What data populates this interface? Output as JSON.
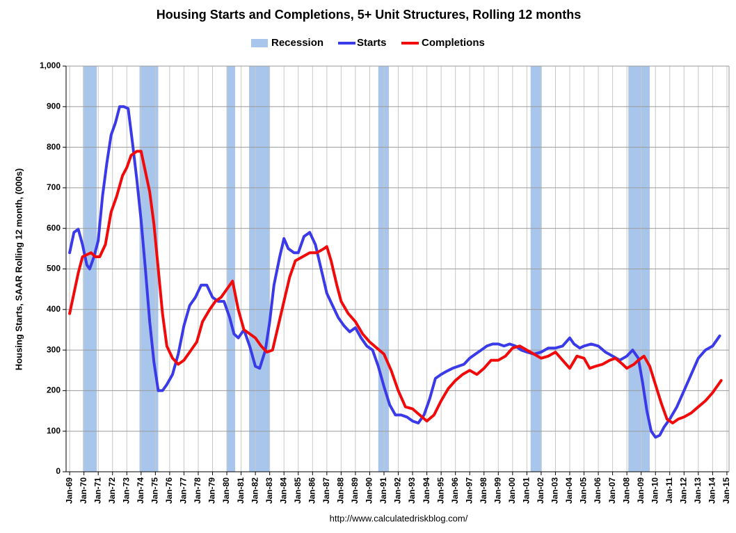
{
  "chart_data": {
    "type": "line",
    "title": "Housing Starts and Completions, 5+ Unit Structures, Rolling 12 months",
    "y_label": "Housing Starts, SAAR Rolling 12 month, (000s)",
    "source": "http://www.calculatedriskblog.com/",
    "xlim": [
      1968.75,
      2015.15
    ],
    "ylim": [
      0,
      1000
    ],
    "yticks": [
      0,
      100,
      200,
      300,
      400,
      500,
      600,
      700,
      800,
      900,
      {
        "value": 1000,
        "label": "1,000"
      }
    ],
    "xticks": [
      {
        "value": 1969,
        "label": "Jan-69"
      },
      {
        "value": 1970,
        "label": "Jan-70"
      },
      {
        "value": 1971,
        "label": "Jan-71"
      },
      {
        "value": 1972,
        "label": "Jan-72"
      },
      {
        "value": 1973,
        "label": "Jan-73"
      },
      {
        "value": 1974,
        "label": "Jan-74"
      },
      {
        "value": 1975,
        "label": "Jan-75"
      },
      {
        "value": 1976,
        "label": "Jan-76"
      },
      {
        "value": 1977,
        "label": "Jan-77"
      },
      {
        "value": 1978,
        "label": "Jan-78"
      },
      {
        "value": 1979,
        "label": "Jan-79"
      },
      {
        "value": 1980,
        "label": "Jan-80"
      },
      {
        "value": 1981,
        "label": "Jan-81"
      },
      {
        "value": 1982,
        "label": "Jan-82"
      },
      {
        "value": 1983,
        "label": "Jan-83"
      },
      {
        "value": 1984,
        "label": "Jan-84"
      },
      {
        "value": 1985,
        "label": "Jan-85"
      },
      {
        "value": 1986,
        "label": "Jan-86"
      },
      {
        "value": 1987,
        "label": "Jan-87"
      },
      {
        "value": 1988,
        "label": "Jan-88"
      },
      {
        "value": 1989,
        "label": "Jan-89"
      },
      {
        "value": 1990,
        "label": "Jan-90"
      },
      {
        "value": 1991,
        "label": "Jan-91"
      },
      {
        "value": 1992,
        "label": "Jan-92"
      },
      {
        "value": 1993,
        "label": "Jan-93"
      },
      {
        "value": 1994,
        "label": "Jan-94"
      },
      {
        "value": 1995,
        "label": "Jan-95"
      },
      {
        "value": 1996,
        "label": "Jan-96"
      },
      {
        "value": 1997,
        "label": "Jan-97"
      },
      {
        "value": 1998,
        "label": "Jan-98"
      },
      {
        "value": 1999,
        "label": "Jan-99"
      },
      {
        "value": 2000,
        "label": "Jan-00"
      },
      {
        "value": 2001,
        "label": "Jan-01"
      },
      {
        "value": 2002,
        "label": "Jan-02"
      },
      {
        "value": 2003,
        "label": "Jan-03"
      },
      {
        "value": 2004,
        "label": "Jan-04"
      },
      {
        "value": 2005,
        "label": "Jan-05"
      },
      {
        "value": 2006,
        "label": "Jan-06"
      },
      {
        "value": 2007,
        "label": "Jan-07"
      },
      {
        "value": 2008,
        "label": "Jan-08"
      },
      {
        "value": 2009,
        "label": "Jan-09"
      },
      {
        "value": 2010,
        "label": "Jan-10"
      },
      {
        "value": 2011,
        "label": "Jan-11"
      },
      {
        "value": 2012,
        "label": "Jan-12"
      },
      {
        "value": 2013,
        "label": "Jan-13"
      },
      {
        "value": 2014,
        "label": "Jan-14"
      },
      {
        "value": 2015,
        "label": "Jan-15"
      }
    ],
    "grid": true,
    "recession": {
      "name": "Recession",
      "color": "#a8c6ec",
      "periods": [
        [
          1969.93,
          1970.9
        ],
        [
          1973.89,
          1975.2
        ],
        [
          1980.0,
          1980.58
        ],
        [
          1981.56,
          1982.98
        ],
        [
          1990.6,
          1991.34
        ],
        [
          2001.26,
          2002.04
        ],
        [
          2008.1,
          2009.6
        ]
      ]
    },
    "series": [
      {
        "name": "Starts",
        "color": "#3a3ae8",
        "x": [
          1969.0,
          1969.3,
          1969.6,
          1969.9,
          1970.2,
          1970.4,
          1970.7,
          1971.0,
          1971.3,
          1971.6,
          1971.9,
          1972.2,
          1972.5,
          1972.8,
          1973.1,
          1973.4,
          1973.7,
          1974.0,
          1974.3,
          1974.6,
          1974.9,
          1975.2,
          1975.5,
          1975.8,
          1976.2,
          1976.6,
          1977.0,
          1977.4,
          1977.8,
          1978.2,
          1978.6,
          1979.0,
          1979.4,
          1979.8,
          1980.2,
          1980.5,
          1980.8,
          1981.2,
          1981.6,
          1982.0,
          1982.3,
          1982.7,
          1983.0,
          1983.3,
          1983.7,
          1984.0,
          1984.3,
          1984.7,
          1985.0,
          1985.4,
          1985.8,
          1986.2,
          1986.6,
          1987.0,
          1987.4,
          1987.8,
          1988.2,
          1988.6,
          1989.0,
          1989.4,
          1989.8,
          1990.2,
          1990.6,
          1991.0,
          1991.4,
          1991.8,
          1992.2,
          1992.6,
          1993.0,
          1993.4,
          1993.8,
          1994.2,
          1994.6,
          1995.0,
          1995.4,
          1995.8,
          1996.2,
          1996.6,
          1997.0,
          1997.4,
          1997.8,
          1998.2,
          1998.6,
          1999.0,
          1999.4,
          1999.8,
          2000.2,
          2000.6,
          2001.0,
          2001.5,
          2002.0,
          2002.5,
          2003.0,
          2003.5,
          2004.0,
          2004.3,
          2004.7,
          2005.0,
          2005.5,
          2006.0,
          2006.5,
          2007.0,
          2007.5,
          2008.0,
          2008.4,
          2008.8,
          2009.1,
          2009.4,
          2009.7,
          2010.0,
          2010.3,
          2010.6,
          2011.0,
          2011.5,
          2012.0,
          2012.5,
          2013.0,
          2013.5,
          2014.0,
          2014.5
        ],
        "values": [
          540,
          590,
          598,
          560,
          510,
          500,
          530,
          570,
          680,
          760,
          830,
          860,
          900,
          900,
          895,
          810,
          720,
          620,
          500,
          370,
          270,
          200,
          200,
          215,
          240,
          290,
          360,
          410,
          430,
          460,
          460,
          430,
          420,
          420,
          380,
          340,
          330,
          350,
          310,
          260,
          255,
          300,
          370,
          460,
          530,
          575,
          550,
          540,
          540,
          580,
          590,
          560,
          500,
          440,
          410,
          380,
          360,
          345,
          355,
          330,
          310,
          300,
          260,
          210,
          165,
          140,
          140,
          135,
          125,
          120,
          140,
          180,
          230,
          240,
          248,
          255,
          260,
          265,
          280,
          290,
          300,
          310,
          315,
          315,
          310,
          315,
          310,
          300,
          295,
          290,
          295,
          305,
          305,
          310,
          330,
          315,
          305,
          310,
          315,
          310,
          295,
          285,
          275,
          285,
          300,
          280,
          220,
          150,
          100,
          85,
          90,
          110,
          130,
          160,
          200,
          240,
          280,
          300,
          310,
          335
        ]
      },
      {
        "name": "Completions",
        "color": "#f00a0a",
        "x": [
          1969.0,
          1969.3,
          1969.6,
          1969.9,
          1970.2,
          1970.5,
          1970.8,
          1971.1,
          1971.5,
          1971.9,
          1972.3,
          1972.7,
          1973.0,
          1973.3,
          1973.7,
          1974.0,
          1974.3,
          1974.6,
          1974.9,
          1975.2,
          1975.5,
          1975.8,
          1976.2,
          1976.6,
          1977.0,
          1977.5,
          1977.9,
          1978.3,
          1978.8,
          1979.2,
          1979.6,
          1980.0,
          1980.4,
          1980.8,
          1981.2,
          1981.6,
          1982.0,
          1982.4,
          1982.8,
          1983.2,
          1983.6,
          1984.0,
          1984.4,
          1984.8,
          1985.3,
          1985.8,
          1986.3,
          1986.8,
          1987.0,
          1987.3,
          1987.7,
          1988.0,
          1988.5,
          1989.0,
          1989.5,
          1990.0,
          1990.5,
          1991.0,
          1991.5,
          1992.0,
          1992.5,
          1993.0,
          1993.5,
          1994.0,
          1994.5,
          1995.0,
          1995.5,
          1996.0,
          1996.5,
          1997.0,
          1997.5,
          1998.0,
          1998.5,
          1999.0,
          1999.5,
          2000.0,
          2000.5,
          2001.0,
          2001.5,
          2002.0,
          2002.5,
          2003.0,
          2003.5,
          2004.0,
          2004.5,
          2005.0,
          2005.4,
          2005.8,
          2006.3,
          2006.8,
          2007.2,
          2007.7,
          2008.0,
          2008.5,
          2008.8,
          2009.2,
          2009.6,
          2010.0,
          2010.4,
          2010.8,
          2011.2,
          2011.6,
          2012.0,
          2012.5,
          2013.0,
          2013.5,
          2014.0,
          2014.3,
          2014.6
        ],
        "values": [
          390,
          440,
          490,
          530,
          535,
          540,
          530,
          530,
          560,
          640,
          680,
          730,
          750,
          780,
          790,
          790,
          740,
          690,
          610,
          500,
          390,
          310,
          280,
          265,
          275,
          300,
          320,
          370,
          400,
          420,
          430,
          450,
          470,
          400,
          350,
          340,
          330,
          310,
          295,
          300,
          360,
          420,
          480,
          520,
          530,
          540,
          540,
          550,
          555,
          520,
          460,
          420,
          390,
          370,
          340,
          320,
          305,
          290,
          250,
          200,
          160,
          155,
          140,
          125,
          140,
          175,
          205,
          225,
          240,
          250,
          240,
          255,
          275,
          275,
          285,
          305,
          310,
          300,
          290,
          280,
          285,
          295,
          275,
          255,
          285,
          280,
          255,
          260,
          265,
          275,
          280,
          265,
          255,
          265,
          275,
          285,
          260,
          215,
          170,
          130,
          120,
          130,
          135,
          145,
          160,
          175,
          195,
          210,
          225
        ]
      }
    ]
  }
}
